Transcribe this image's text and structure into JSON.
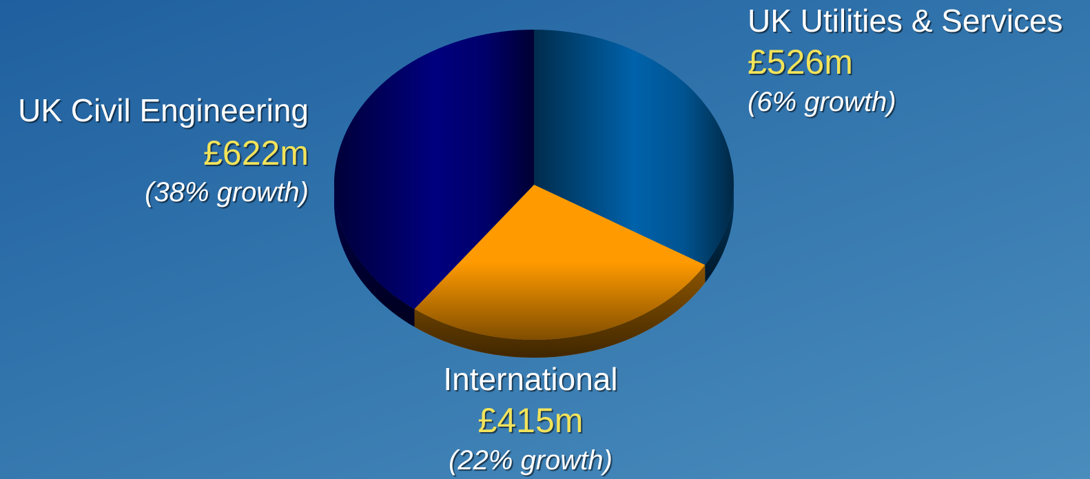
{
  "chart_data": {
    "type": "pie",
    "categories": [
      "UK Utilities & Services",
      "International",
      "UK Civil Engineering"
    ],
    "values": [
      526,
      415,
      622
    ],
    "value_labels": [
      "£526m",
      "£415m",
      "£622m"
    ],
    "growth_labels": [
      "(6% growth)",
      "(22% growth)",
      "(38% growth)"
    ],
    "colors": [
      "#0062aa",
      "#ff9a00",
      "#00007e"
    ]
  }
}
